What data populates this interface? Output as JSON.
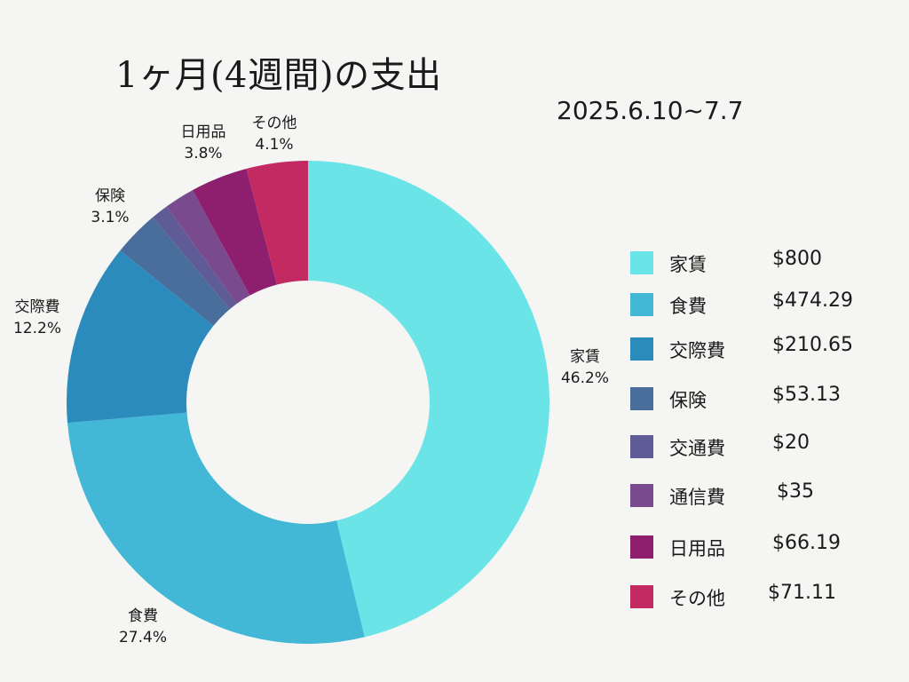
{
  "chart_data": {
    "type": "pie",
    "style": "donut",
    "title": "1ヶ月(4週間)の支出",
    "subtitle": "2025.6.10~7.7",
    "legend_position": "right",
    "slices": [
      {
        "name": "家賃",
        "value": 800,
        "value_label": "$800",
        "percent_label": "46.2%",
        "color": "#6be4e8"
      },
      {
        "name": "食費",
        "value": 474.29,
        "value_label": "$474.29",
        "percent_label": "27.4%",
        "color": "#42b8d6"
      },
      {
        "name": "交際費",
        "value": 210.65,
        "value_label": "$210.65",
        "percent_label": "12.2%",
        "color": "#2b8bbd"
      },
      {
        "name": "保険",
        "value": 53.13,
        "value_label": "$53.13",
        "percent_label": "3.1%",
        "color": "#4a6e9c"
      },
      {
        "name": "交通費",
        "value": 20,
        "value_label": "$20",
        "percent_label": "",
        "color": "#5f5b96"
      },
      {
        "name": "通信費",
        "value": 35,
        "value_label": "$35",
        "percent_label": "",
        "color": "#7a4a8e"
      },
      {
        "name": "日用品",
        "value": 66.19,
        "value_label": "$66.19",
        "percent_label": "3.8%",
        "color": "#8e1f6e"
      },
      {
        "name": "その他",
        "value": 71.11,
        "value_label": "$71.11",
        "percent_label": "4.1%",
        "color": "#c42a62"
      }
    ]
  }
}
